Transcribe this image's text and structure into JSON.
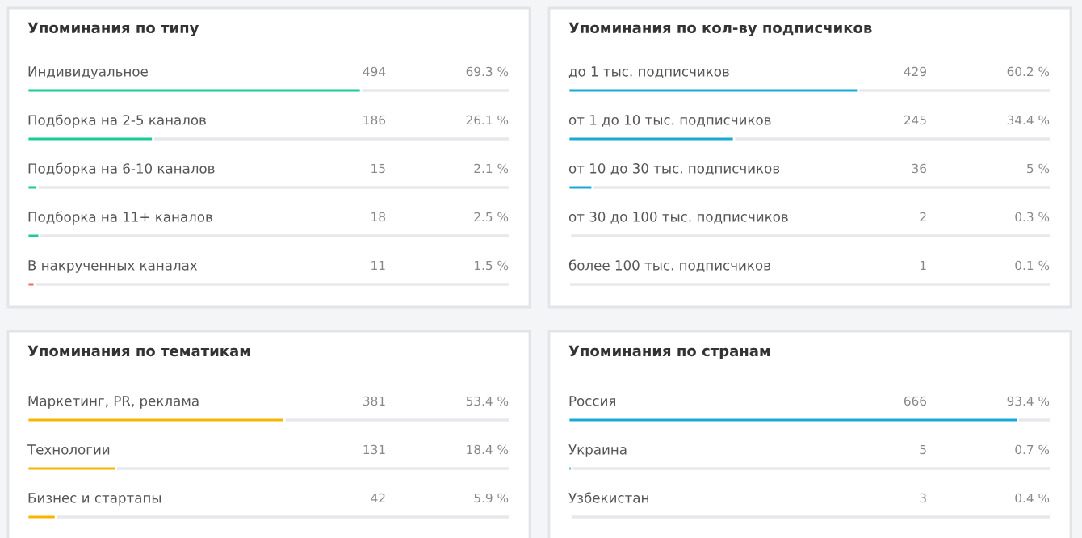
{
  "chart_data": [
    {
      "type": "bar",
      "orientation": "horizontal",
      "title": "Упоминания по типу",
      "categories": [
        "Индивидуальное",
        "Подборка на 2-5 каналов",
        "Подборка на 6-10 каналов",
        "Подборка на 11+ каналов",
        "В накрученных каналах"
      ],
      "values": [
        69.3,
        26.1,
        2.1,
        2.5,
        1.5
      ],
      "colors": [
        "#1cc99b",
        "#1cc99b",
        "#1cc99b",
        "#1cc99b",
        "#f26b6b"
      ],
      "value_labels": [
        "69.3 %",
        "26.1 %",
        "2.1 %",
        "2.5 %",
        "1.5 %"
      ],
      "annotations": [
        "494",
        "186",
        "15",
        "18",
        "11"
      ],
      "xlim": [
        0,
        100
      ],
      "tick_labels": "y"
    },
    {
      "type": "bar",
      "orientation": "horizontal",
      "title": "Упоминания по кол-ву подписчиков",
      "categories": [
        "до 1 тыс. подписчиков",
        "от 1 до 10 тыс. подписчиков",
        "от 10 до 30 тыс. подписчиков",
        "от 30 до 100 тыс. подписчиков",
        "более 100 тыс. подписчиков"
      ],
      "values": [
        60.2,
        34.4,
        5,
        0.3,
        0.1
      ],
      "colors": [
        "#1aa8d4",
        "#1aa8d4",
        "#1aa8d4",
        "#1aa8d4",
        "#1aa8d4"
      ],
      "value_labels": [
        "60.2 %",
        "34.4 %",
        "5 %",
        "0.3 %",
        "0.1 %"
      ],
      "annotations": [
        "429",
        "245",
        "36",
        "2",
        "1"
      ],
      "xlim": [
        0,
        100
      ],
      "tick_labels": "y"
    },
    {
      "type": "bar",
      "orientation": "horizontal",
      "title": "Упоминания по тематикам",
      "categories": [
        "Маркетинг, PR, реклама",
        "Технологии",
        "Бизнес и стартапы"
      ],
      "values": [
        53.4,
        18.4,
        5.9
      ],
      "colors": [
        "#f7b500",
        "#f7b500",
        "#f7b500"
      ],
      "value_labels": [
        "53.4 %",
        "18.4 %",
        "5.9 %"
      ],
      "annotations": [
        "381",
        "131",
        "42"
      ],
      "xlim": [
        0,
        100
      ],
      "tick_labels": "y"
    },
    {
      "type": "bar",
      "orientation": "horizontal",
      "title": "Упоминания по странам",
      "categories": [
        "Россия",
        "Украина",
        "Узбекистан"
      ],
      "values": [
        93.4,
        0.7,
        0.4
      ],
      "colors": [
        "#1aa8d4",
        "#1aa8d4",
        "#1aa8d4"
      ],
      "value_labels": [
        "93.4 %",
        "0.7 %",
        "0.4 %"
      ],
      "annotations": [
        "666",
        "5",
        "3"
      ],
      "xlim": [
        0,
        100
      ],
      "tick_labels": "y"
    }
  ]
}
